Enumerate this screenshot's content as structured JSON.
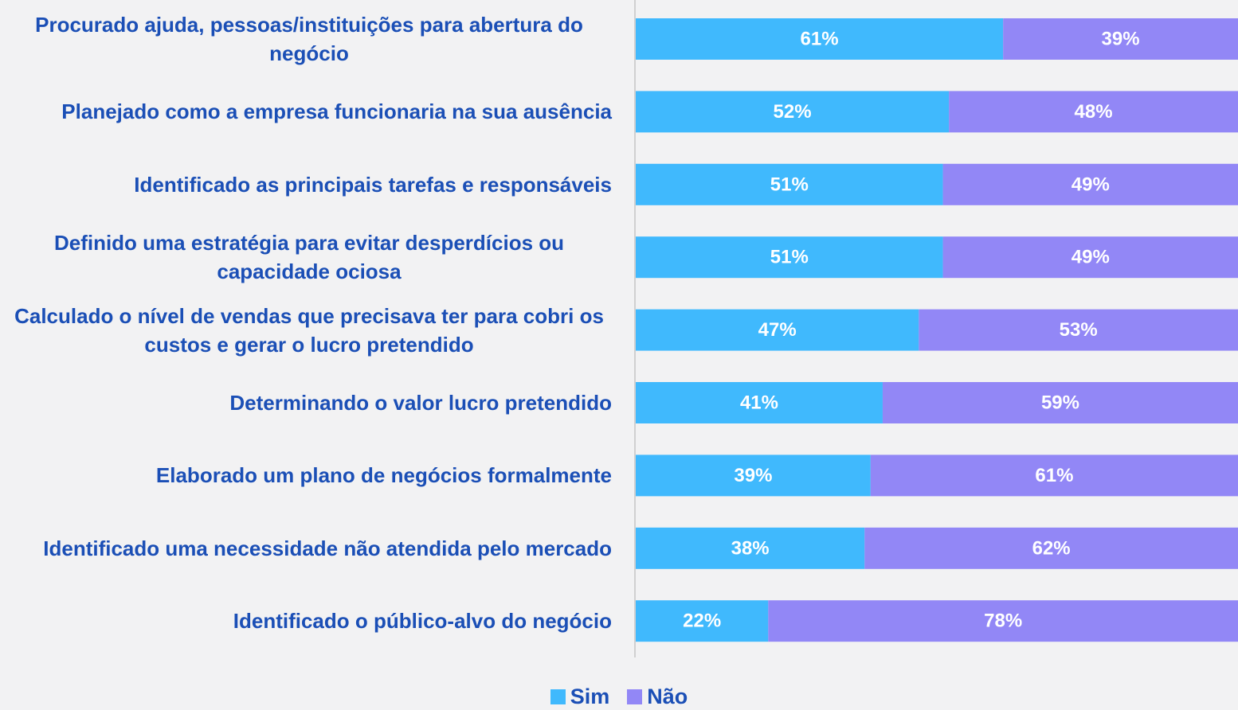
{
  "chart_data": {
    "type": "stacked-bar-horizontal",
    "categories": [
      "Procurado ajuda, pessoas/instituições para abertura do negócio",
      "Planejado como a empresa funcionaria na sua ausência",
      "Identificado as principais tarefas e responsáveis",
      "Definido uma estratégia para evitar desperdícios ou capacidade ociosa",
      "Calculado o nível de vendas que precisava ter para cobri os custos e gerar o lucro pretendido",
      "Determinando o valor lucro pretendido",
      "Elaborado um plano de negócios formalmente",
      "Identificado uma necessidade não atendida pelo mercado",
      "Identificado o público-alvo do negócio"
    ],
    "series": [
      {
        "name": "Sim",
        "color": "#40b9fd",
        "values": [
          61,
          52,
          51,
          51,
          47,
          41,
          39,
          38,
          22
        ],
        "value_labels": [
          "61%",
          "52%",
          "51%",
          "51%",
          "47%",
          "41%",
          "39%",
          "38%",
          "22%"
        ]
      },
      {
        "name": "Não",
        "color": "#9287f6",
        "values": [
          39,
          48,
          49,
          49,
          53,
          59,
          61,
          62,
          78
        ],
        "value_labels": [
          "39%",
          "48%",
          "49%",
          "49%",
          "53%",
          "59%",
          "61%",
          "62%",
          "78%"
        ]
      }
    ],
    "xlim": [
      0,
      100
    ]
  }
}
